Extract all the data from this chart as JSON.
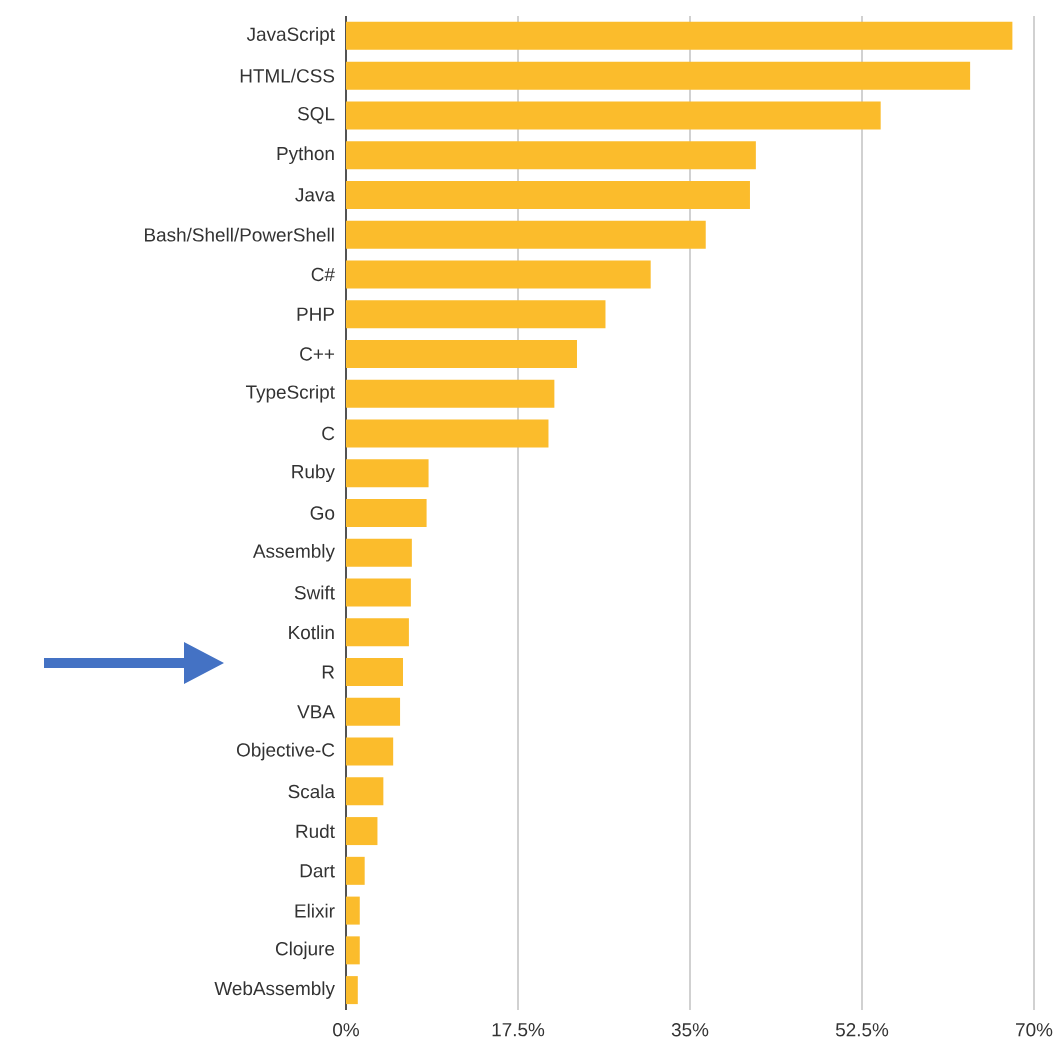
{
  "chart_data": {
    "type": "bar",
    "orientation": "horizontal",
    "categories": [
      "JavaScript",
      "HTML/CSS",
      "SQL",
      "Python",
      "Java",
      "Bash/Shell/PowerShell",
      "C#",
      "PHP",
      "C++",
      "TypeScript",
      "C",
      "Ruby",
      "Go",
      "Assembly",
      "Swift",
      "Kotlin",
      "R",
      "VBA",
      "Objective-C",
      "Scala",
      "Rudt",
      "Dart",
      "Elixir",
      "Clojure",
      "WebAssembly"
    ],
    "values": [
      67.8,
      63.5,
      54.4,
      41.7,
      41.1,
      36.6,
      31.0,
      26.4,
      23.5,
      21.2,
      20.6,
      8.4,
      8.2,
      6.7,
      6.6,
      6.4,
      5.8,
      5.5,
      4.8,
      3.8,
      3.2,
      1.9,
      1.4,
      1.4,
      1.2
    ],
    "color": "#fbbc2c",
    "xlim": [
      0,
      70
    ],
    "xticks": [
      {
        "value": 0,
        "label": "0%"
      },
      {
        "value": 17.5,
        "label": "17.5%"
      },
      {
        "value": 35,
        "label": "35%"
      },
      {
        "value": 52.5,
        "label": "52.5%"
      },
      {
        "value": 70,
        "label": "70%"
      }
    ],
    "grid": "x"
  }
}
